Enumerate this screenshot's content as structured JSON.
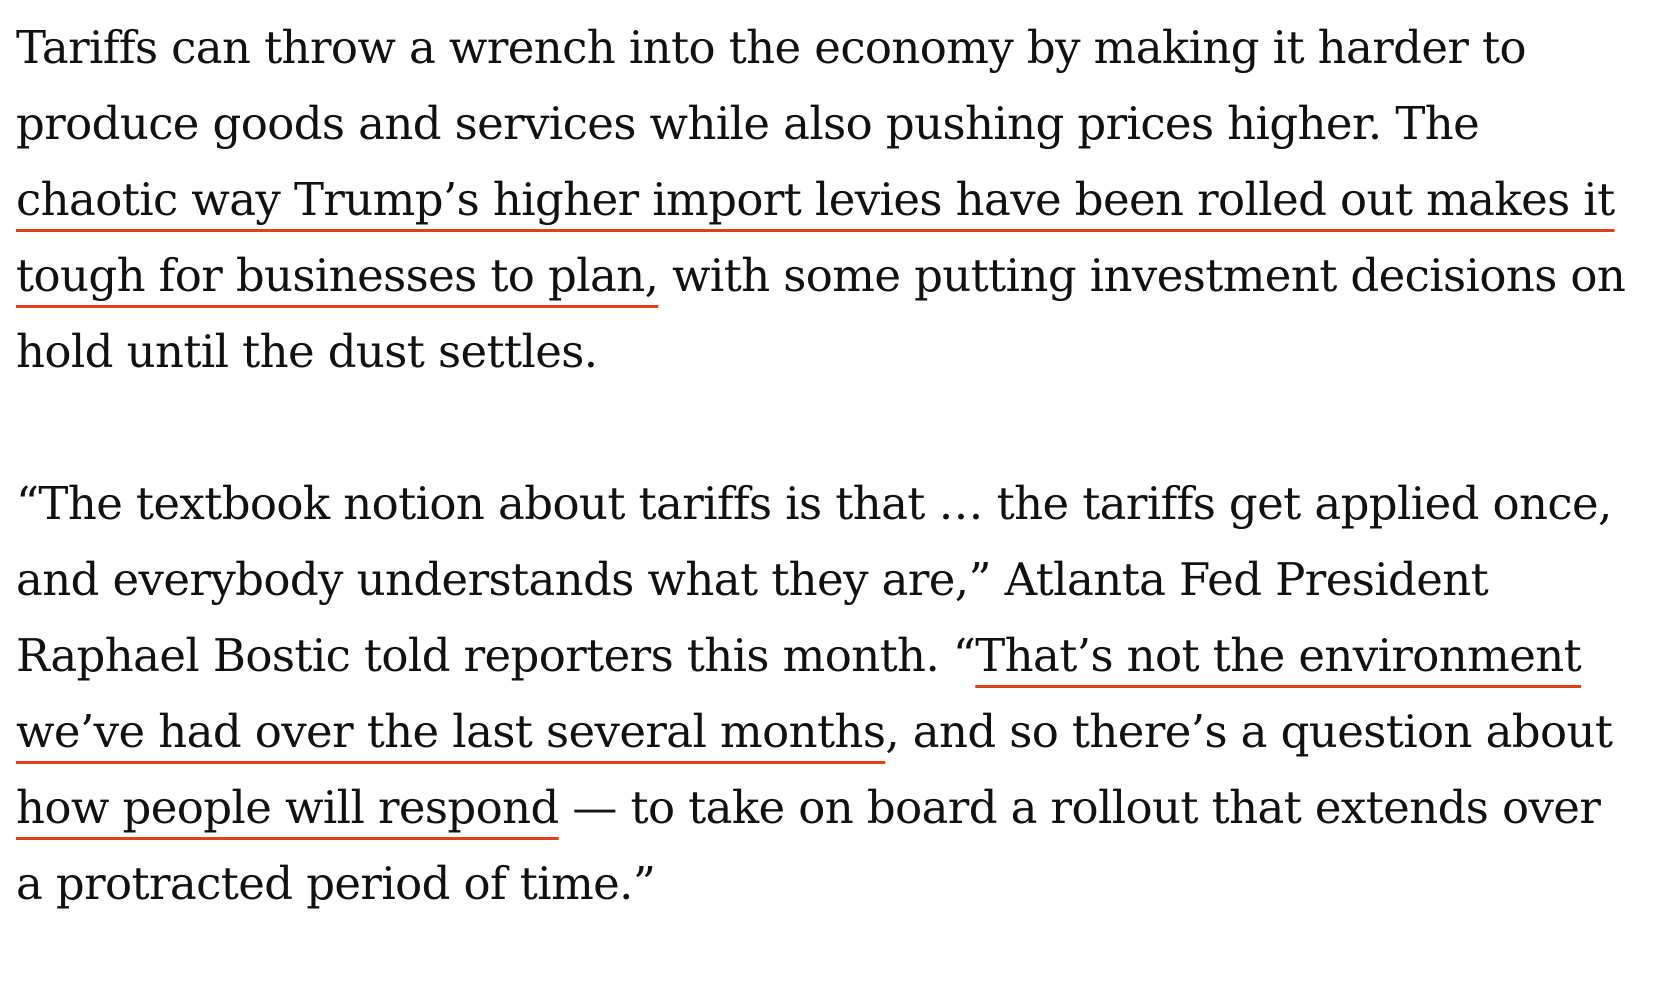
{
  "paragraphs": [
    {
      "segments": [
        {
          "text": "Tariffs can throw a wrench into the economy by making it harder to produce goods and services while also pushing prices higher. The "
        },
        {
          "text": "chaotic way Trump’s higher import levies have been rolled out makes it tough for businesses to plan,"
        },
        {
          "text": " with some putting investment decisions on hold until the dust settles."
        }
      ]
    },
    {
      "segments": [
        {
          "text": "“The textbook notion about tariffs is that … the tariffs get applied once, and everybody understands what they are,” Atlanta Fed President Raphael Bostic told reporters this month. “"
        },
        {
          "text": "That’s not the environment we’ve had over the last several months"
        },
        {
          "text": ", and so there’s a question about "
        },
        {
          "text": "how people will respond"
        },
        {
          "text": " — to take on board a rollout that extends over a protracted period of time.”"
        }
      ]
    }
  ],
  "colors": {
    "text": "#111111",
    "highlight_underline": "#e2401c",
    "background": "#ffffff"
  }
}
